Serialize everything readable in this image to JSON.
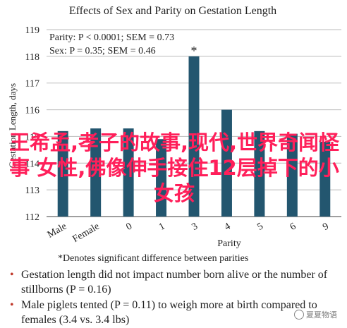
{
  "chart_data": {
    "type": "bar",
    "title": "Effects of Sex and Parity on Gestation Length",
    "ylabel": "Gestation Length, days",
    "xlabel": "Parity",
    "ylim": [
      112,
      119
    ],
    "yticks": [
      112,
      113,
      114,
      115,
      116,
      117,
      118,
      119
    ],
    "categories": [
      "Male",
      "Female",
      "0",
      "1",
      "3",
      "4",
      "5",
      "6",
      "9"
    ],
    "values": [
      115.2,
      115.3,
      115.3,
      114.9,
      118.0,
      116.0,
      115.2,
      115.1,
      114.8
    ],
    "annotations": [
      {
        "category": "3",
        "text": "*"
      }
    ],
    "stats_text": [
      "Parity: P < 0.0001; SEM = 0.73",
      "Sex: P = 0.35; SEM = 0.46"
    ],
    "bar_color": "#23566f",
    "grid": true
  },
  "footnote": "*Denotes significant difference between parities",
  "notes": [
    "Gestation length did not impact number born alive or the number of stillborns (P = 0.16)",
    "Male piglets tented (P = 0.11) to weigh more at birth compared to females (3.4 vs. 3.4 lbs)"
  ],
  "overlay": "王希孟,孝子的故事,现代,世界奇闻怪事 女性,佛像伸手接住12层掉下的小女孩",
  "watermark": "夏夏物语",
  "watermark_icon": "wechat-icon"
}
